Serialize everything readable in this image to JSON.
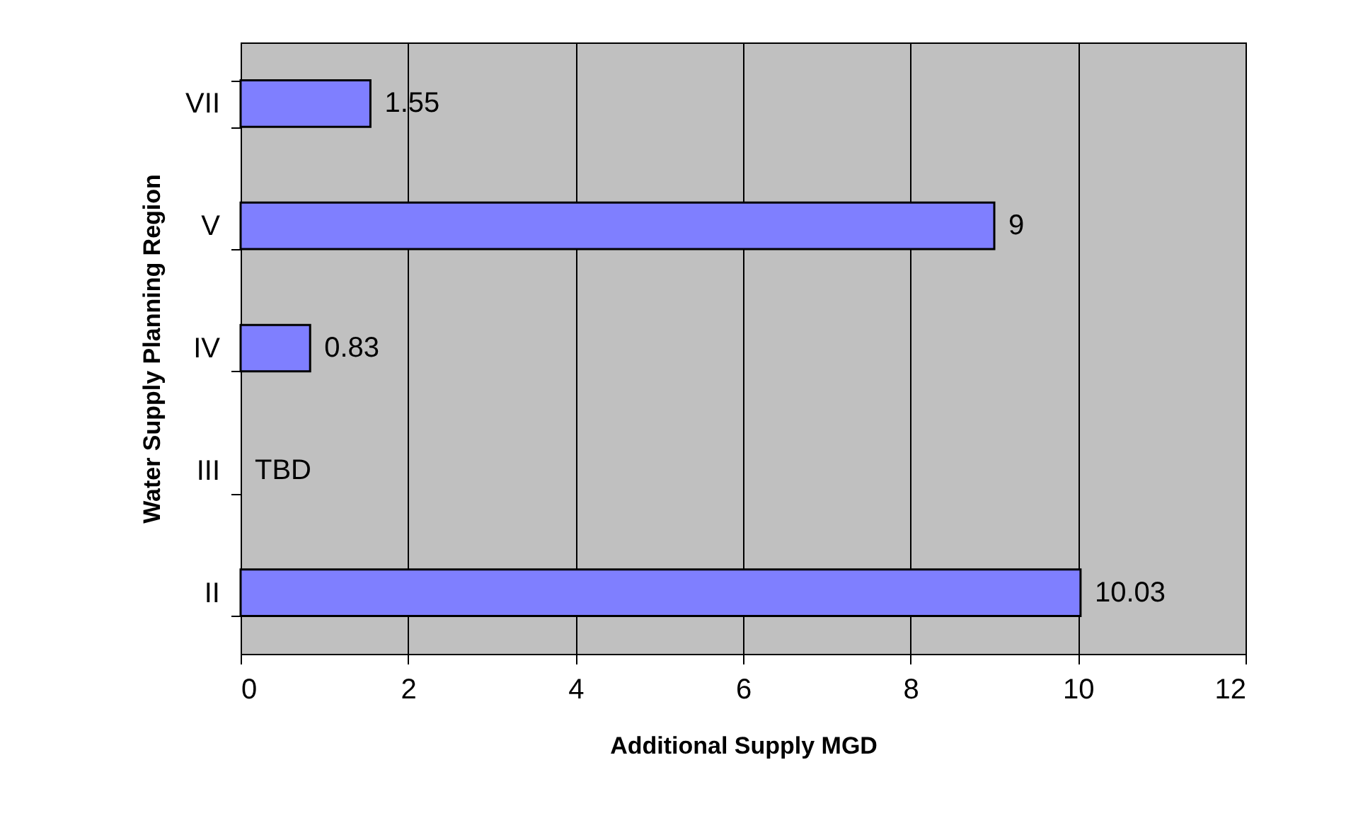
{
  "chart_data": {
    "type": "bar",
    "orientation": "horizontal",
    "categories": [
      "VII",
      "V",
      "IV",
      "III",
      "II"
    ],
    "values": [
      1.55,
      9,
      0.83,
      null,
      10.03
    ],
    "value_labels": [
      "1.55",
      "9",
      "0.83",
      "TBD",
      "10.03"
    ],
    "color": "#7f7fff",
    "xlabel": "Additional Supply MGD",
    "ylabel": "Water Supply Planning Region",
    "xlim": [
      0,
      12
    ],
    "xticks": [
      0,
      2,
      4,
      6,
      8,
      10,
      12
    ],
    "grid": "x"
  }
}
